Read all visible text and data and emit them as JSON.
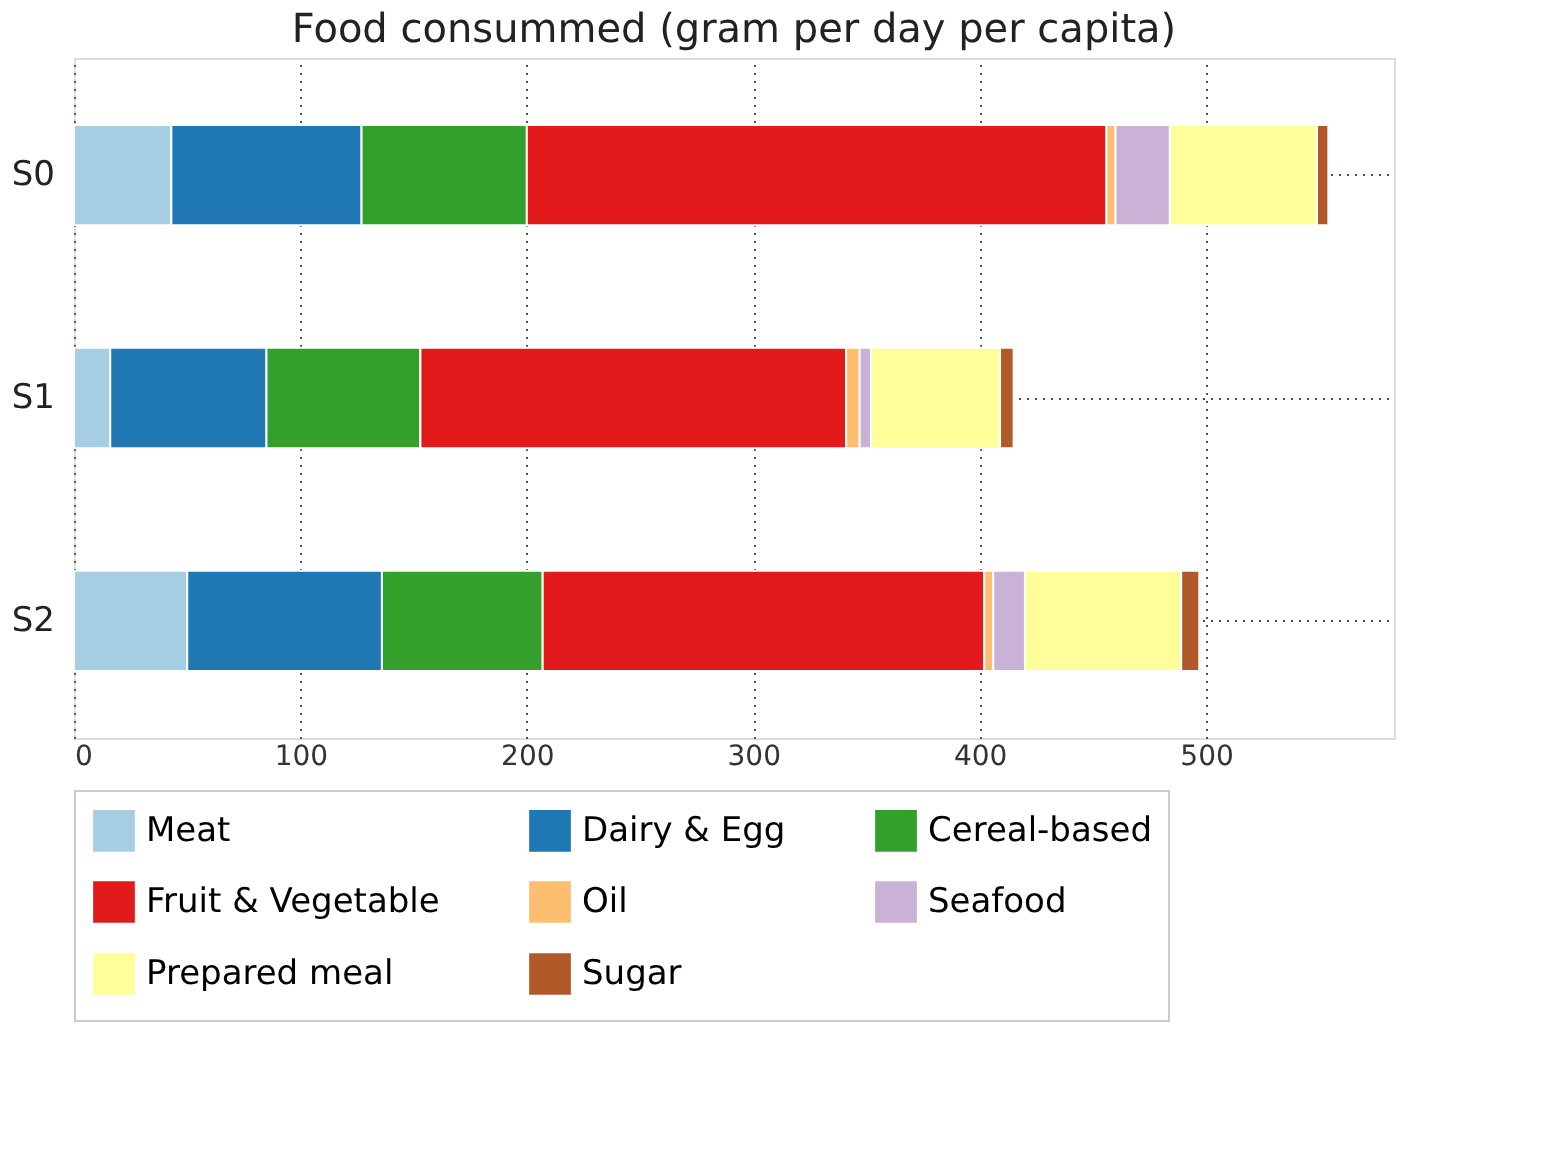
{
  "chart_data": {
    "type": "bar",
    "orientation": "horizontal",
    "stacked": true,
    "title": "Food consummed (gram per day per capita)",
    "categories": [
      "S0",
      "S1",
      "S2"
    ],
    "series": [
      {
        "name": "Meat",
        "color": "#a6cee3",
        "values": [
          43,
          16,
          50
        ]
      },
      {
        "name": "Dairy & Egg",
        "color": "#1f78b4",
        "values": [
          84,
          69,
          86
        ]
      },
      {
        "name": "Cereal-based",
        "color": "#33a02c",
        "values": [
          73,
          68,
          71
        ]
      },
      {
        "name": "Fruit & Vegetable",
        "color": "#e31a1c",
        "values": [
          256,
          188,
          195
        ]
      },
      {
        "name": "Oil",
        "color": "#fdbf6f",
        "values": [
          4,
          6,
          4
        ]
      },
      {
        "name": "Seafood",
        "color": "#cab2d6",
        "values": [
          24,
          5,
          14
        ]
      },
      {
        "name": "Prepared meal",
        "color": "#ffff99",
        "values": [
          65,
          57,
          69
        ]
      },
      {
        "name": "Sugar",
        "color": "#b15928",
        "values": [
          5,
          6,
          8
        ]
      }
    ],
    "xlim": [
      0,
      583
    ],
    "xticks": [
      0,
      100,
      200,
      300,
      400,
      500
    ],
    "grid": true,
    "legend": "bottom"
  }
}
